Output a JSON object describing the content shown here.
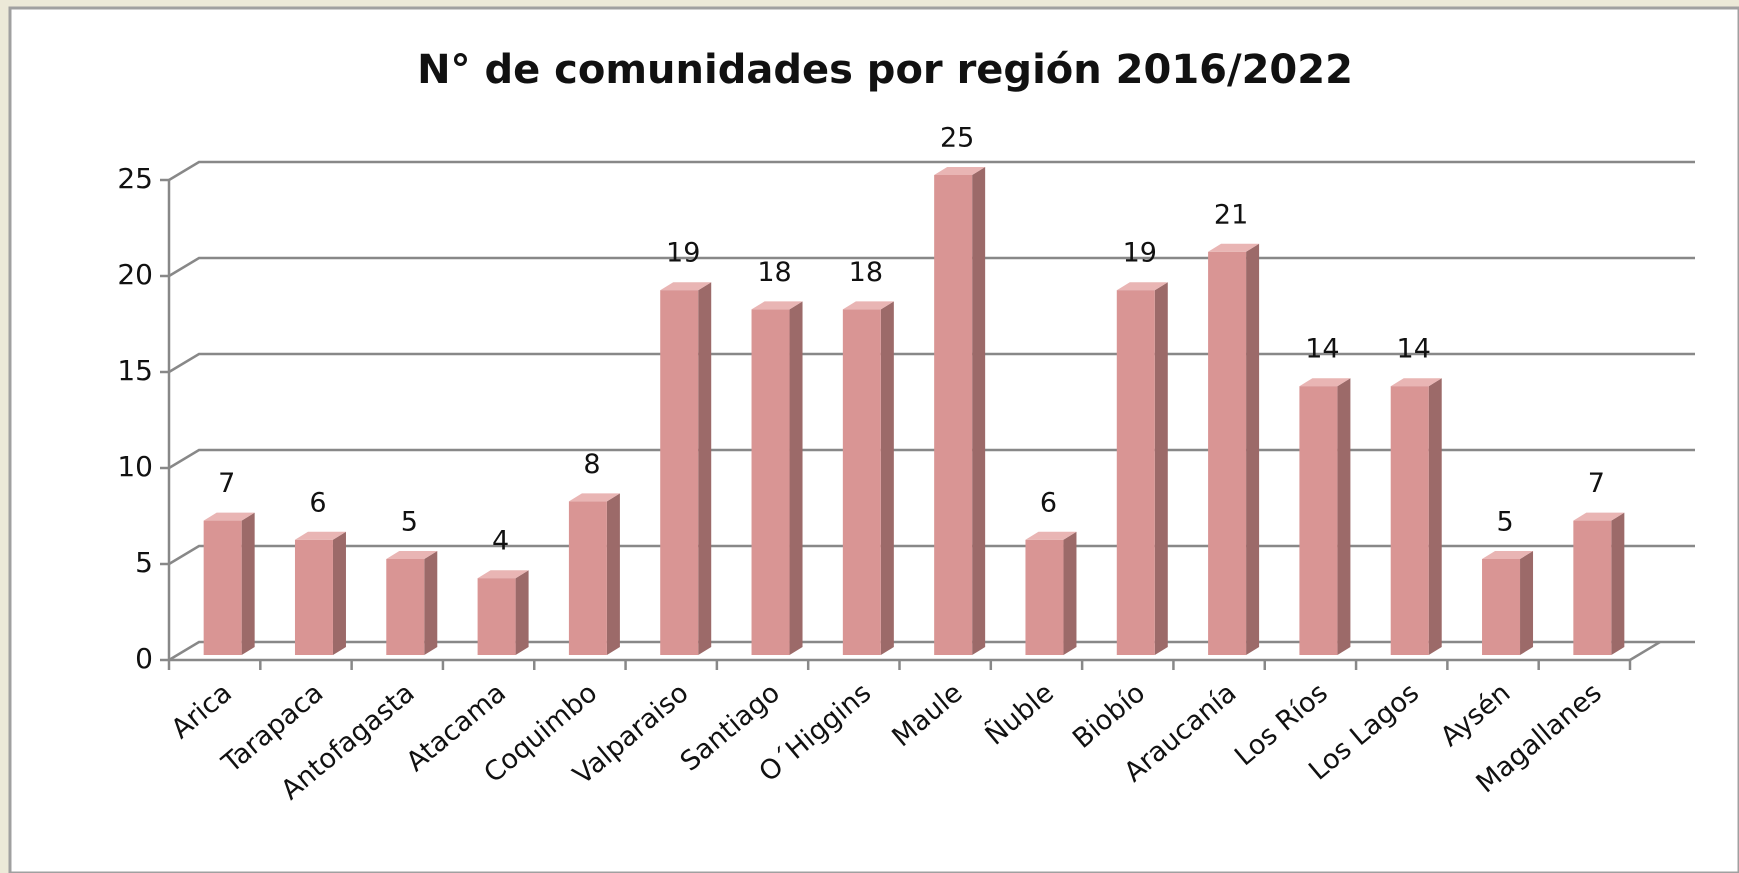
{
  "chart_data": {
    "type": "bar",
    "title": "N° de comunidades por región 2016/2022",
    "categories": [
      "Arica",
      "Tarapaca",
      "Antofagasta",
      "Atacama",
      "Coquimbo",
      "Valparaiso",
      "Santiago",
      "O´Higgins",
      "Maule",
      "Ñuble",
      "Biobío",
      "Araucanía",
      "Los Ríos",
      "Los Lagos",
      "Aysén",
      "Magallanes"
    ],
    "values": [
      7,
      6,
      5,
      4,
      8,
      19,
      18,
      18,
      25,
      6,
      19,
      21,
      14,
      14,
      5,
      7
    ],
    "color": "#d99594",
    "ylim": [
      0,
      25
    ],
    "yticks": [
      0,
      5,
      10,
      15,
      20,
      25
    ],
    "grid": true
  }
}
